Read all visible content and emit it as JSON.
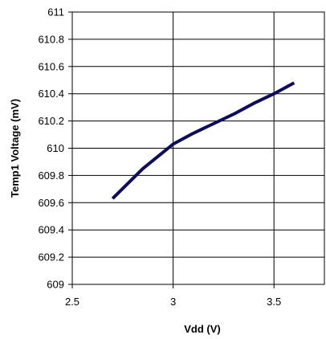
{
  "chart_data": {
    "type": "line",
    "title": "",
    "xlabel": "Vdd (V)",
    "ylabel": "Temp1 Voltage (mV)",
    "xlim": [
      2.5,
      3.75
    ],
    "ylim": [
      609,
      611
    ],
    "x_ticks": [
      2.5,
      3,
      3.5
    ],
    "x_tick_labels": [
      "2.5",
      "3",
      "3.5"
    ],
    "y_ticks": [
      609,
      609.2,
      609.4,
      609.6,
      609.8,
      610,
      610.2,
      610.4,
      610.6,
      610.8,
      611
    ],
    "y_tick_labels": [
      "609",
      "609.2",
      "609.4",
      "609.6",
      "609.8",
      "610",
      "610.2",
      "610.4",
      "610.6",
      "610.8",
      "611"
    ],
    "grid": true,
    "legend": "none",
    "series": [
      {
        "color": "#0d0d5c",
        "x": [
          2.7,
          2.85,
          3.0,
          3.1,
          3.2,
          3.3,
          3.4,
          3.5,
          3.6
        ],
        "y": [
          609.63,
          609.85,
          610.03,
          610.11,
          610.18,
          610.25,
          610.33,
          610.4,
          610.48
        ]
      }
    ]
  }
}
